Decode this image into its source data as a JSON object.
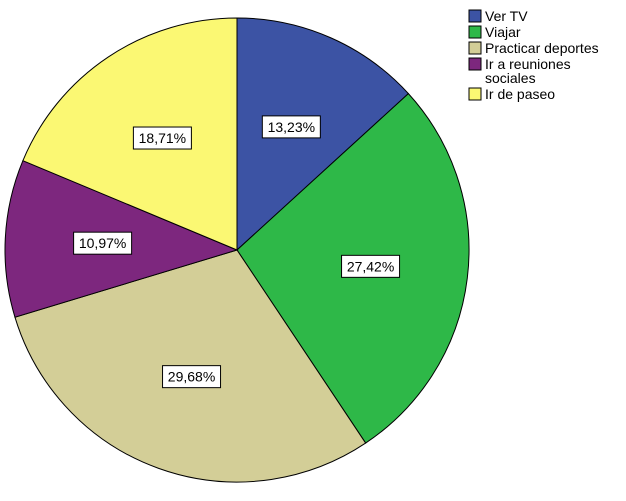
{
  "chart_data": {
    "type": "pie",
    "start_angle": "12 o'clock, clockwise",
    "slices": [
      {
        "label": "Ver TV",
        "value": 13.23,
        "value_label": "13,23%",
        "color": "#3c53a4"
      },
      {
        "label": "Viajar",
        "value": 27.42,
        "value_label": "27,42%",
        "color": "#2eb848"
      },
      {
        "label": "Practicar deportes",
        "value": 29.68,
        "value_label": "29,68%",
        "color": "#d3ce97"
      },
      {
        "label": "Ir a reuniones sociales",
        "value": 10.97,
        "value_label": "10,97%",
        "color": "#7d277e"
      },
      {
        "label": "Ir de paseo",
        "value": 18.71,
        "value_label": "18,71%",
        "color": "#fbf873"
      }
    ],
    "legend": {
      "placement": "top-right",
      "entries": [
        {
          "text_lines": [
            "Ver TV"
          ],
          "color": "#3c53a4"
        },
        {
          "text_lines": [
            "Viajar"
          ],
          "color": "#2eb848"
        },
        {
          "text_lines": [
            "Practicar deportes"
          ],
          "color": "#d3ce97"
        },
        {
          "text_lines": [
            "Ir a reuniones",
            "sociales"
          ],
          "color": "#7d277e"
        },
        {
          "text_lines": [
            "Ir de paseo"
          ],
          "color": "#fbf873"
        }
      ]
    }
  }
}
